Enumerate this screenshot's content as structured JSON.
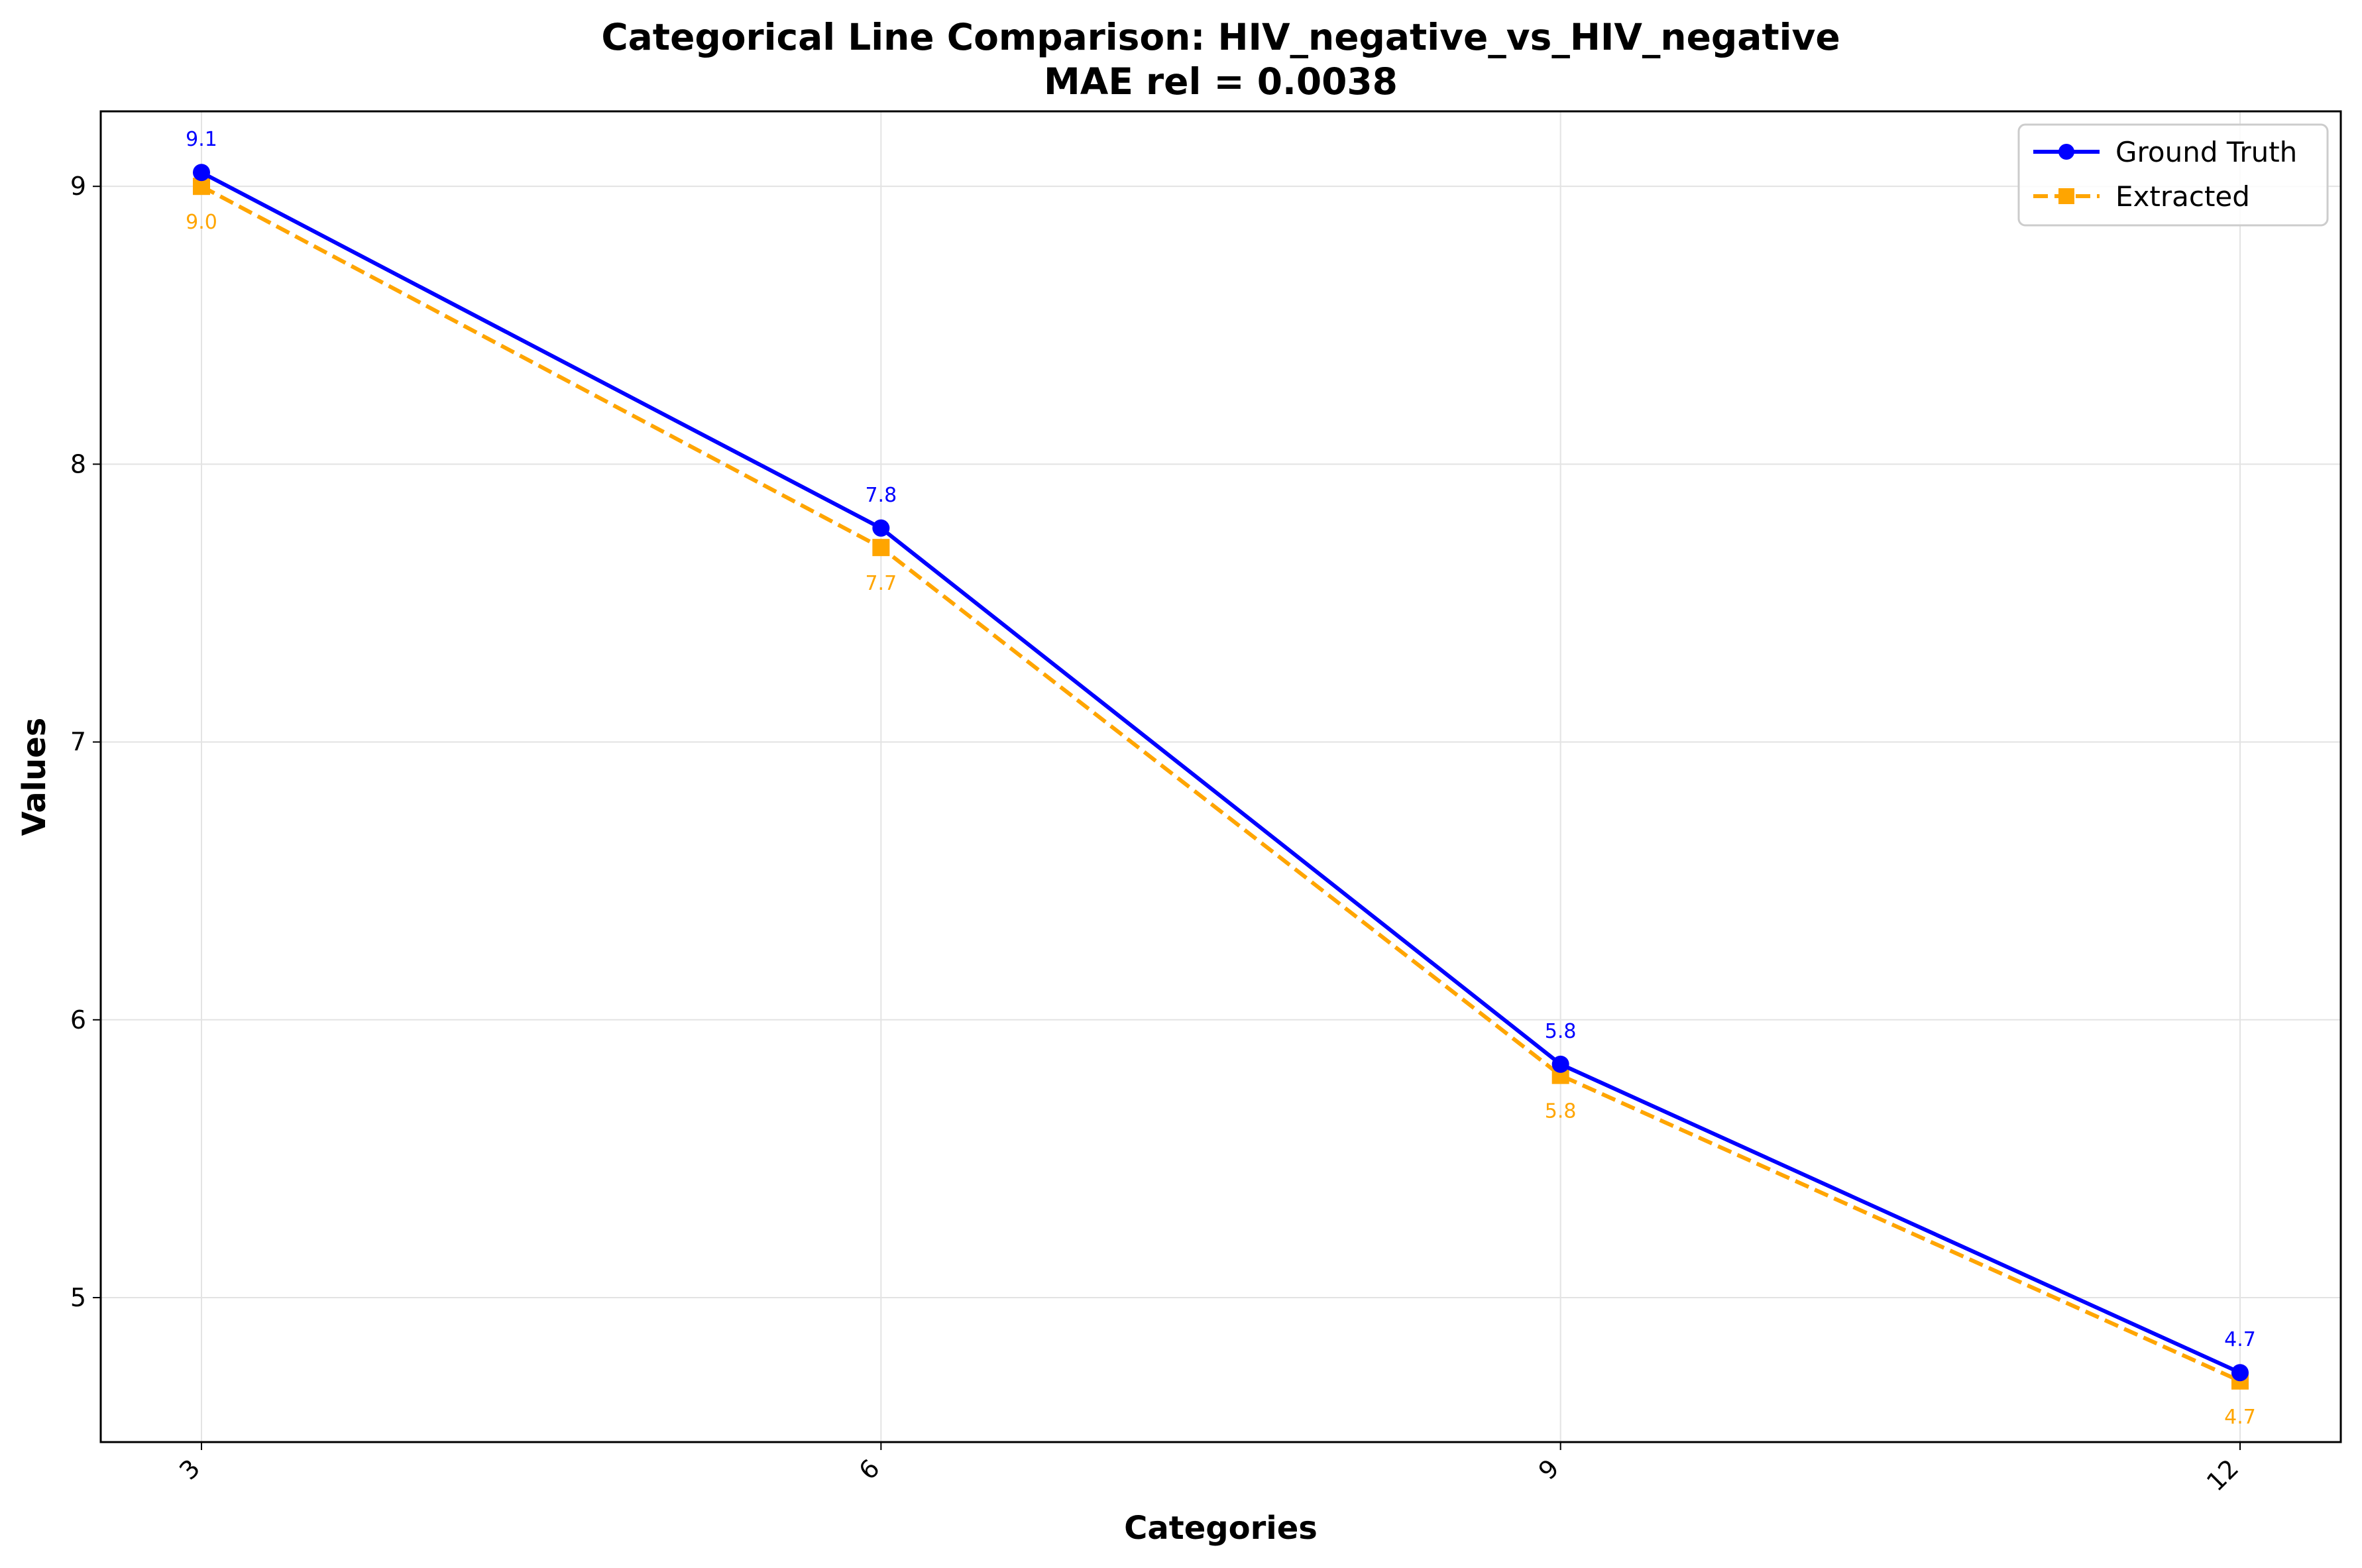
{
  "chart_data": {
    "type": "line",
    "title": "Categorical Line Comparison: HIV_negative_vs_HIV_negative",
    "subtitle": "MAE rel = 0.0038",
    "xlabel": "Categories",
    "ylabel": "Values",
    "categories": [
      "3",
      "6",
      "9",
      "12"
    ],
    "ylim": [
      4.48,
      9.27
    ],
    "yticks": [
      5,
      6,
      7,
      8,
      9
    ],
    "grid": true,
    "legend_position": "top-right",
    "series": [
      {
        "name": "Ground Truth",
        "values": [
          9.05,
          7.77,
          5.84,
          4.73
        ],
        "labels": [
          "9.1",
          "7.8",
          "5.8",
          "4.7"
        ],
        "color": "#0000ff",
        "line_style": "solid",
        "marker": "circle",
        "label_position": "above"
      },
      {
        "name": "Extracted",
        "values": [
          9.0,
          7.7,
          5.8,
          4.7
        ],
        "labels": [
          "9.0",
          "7.7",
          "5.8",
          "4.7"
        ],
        "color": "#ffa500",
        "line_style": "dashed",
        "marker": "square",
        "label_position": "below"
      }
    ]
  }
}
